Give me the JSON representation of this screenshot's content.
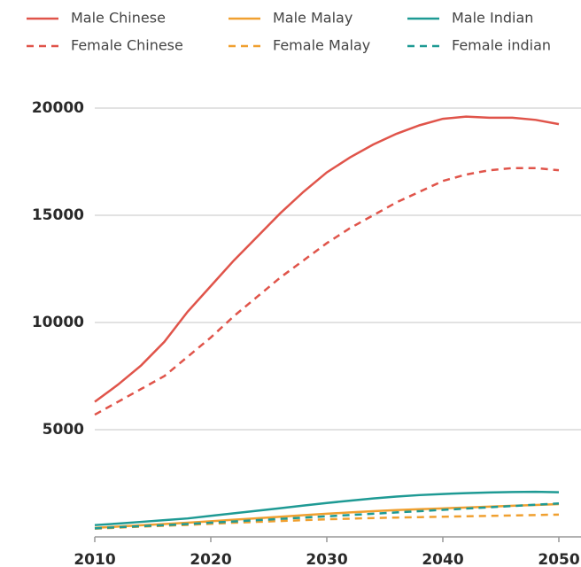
{
  "chart_data": {
    "type": "line",
    "x": [
      2010,
      2012,
      2014,
      2016,
      2018,
      2020,
      2022,
      2024,
      2026,
      2028,
      2030,
      2032,
      2034,
      2036,
      2038,
      2040,
      2042,
      2044,
      2046,
      2048,
      2050
    ],
    "series": [
      {
        "name": "Male Chinese",
        "color": "#e0544a",
        "dash": false,
        "values": [
          6300,
          7100,
          8000,
          9100,
          10500,
          11700,
          12900,
          14000,
          15100,
          16100,
          17000,
          17700,
          18300,
          18800,
          19200,
          19500,
          19600,
          19550,
          19550,
          19450,
          19250
        ]
      },
      {
        "name": "Male Malay",
        "color": "#f0a030",
        "dash": false,
        "values": [
          420,
          480,
          540,
          600,
          660,
          730,
          800,
          870,
          940,
          1010,
          1080,
          1140,
          1200,
          1250,
          1290,
          1330,
          1370,
          1410,
          1450,
          1490,
          1530
        ]
      },
      {
        "name": "Male Indian",
        "color": "#1e9a94",
        "dash": false,
        "values": [
          550,
          620,
          700,
          780,
          860,
          980,
          1100,
          1220,
          1340,
          1460,
          1580,
          1690,
          1790,
          1880,
          1950,
          2000,
          2040,
          2070,
          2090,
          2100,
          2080
        ]
      },
      {
        "name": "Female Chinese",
        "color": "#e0544a",
        "dash": true,
        "values": [
          5700,
          6300,
          6900,
          7500,
          8400,
          9300,
          10300,
          11200,
          12100,
          12900,
          13700,
          14400,
          15000,
          15600,
          16100,
          16600,
          16900,
          17100,
          17200,
          17200,
          17100
        ]
      },
      {
        "name": "Female Malay",
        "color": "#f0a030",
        "dash": true,
        "values": [
          380,
          430,
          480,
          520,
          560,
          610,
          660,
          700,
          740,
          780,
          820,
          850,
          880,
          900,
          920,
          940,
          960,
          980,
          1000,
          1020,
          1040
        ]
      },
      {
        "name": "Female indian",
        "color": "#1e9a94",
        "dash": true,
        "values": [
          400,
          450,
          500,
          550,
          600,
          660,
          720,
          780,
          840,
          900,
          960,
          1020,
          1080,
          1140,
          1200,
          1260,
          1320,
          1380,
          1440,
          1500,
          1560
        ]
      }
    ],
    "xlim": [
      2010,
      2050
    ],
    "xticks": [
      2010,
      2020,
      2030,
      2040,
      2050
    ],
    "ylim": [
      0,
      20000
    ],
    "yticks": [
      5000,
      10000,
      15000,
      20000
    ],
    "grid": true,
    "legend": "top"
  }
}
